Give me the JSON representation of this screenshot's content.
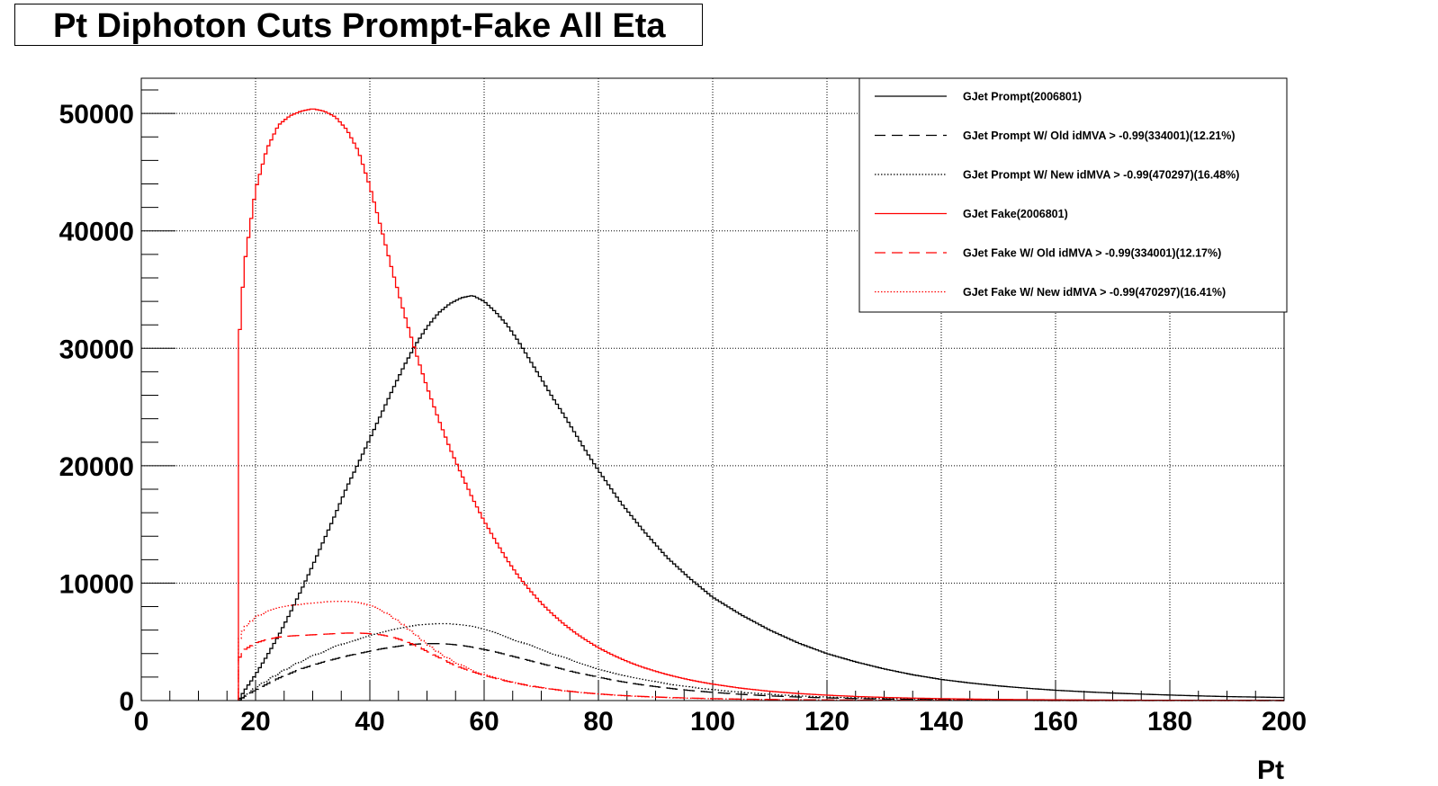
{
  "chart_data": {
    "type": "line",
    "title": "Pt Diphoton Cuts Prompt-Fake All Eta",
    "xlabel": "Pt",
    "ylabel": "",
    "xlim": [
      0,
      200
    ],
    "ylim": [
      0,
      53000
    ],
    "x_ticks": [
      "0",
      "20",
      "40",
      "60",
      "80",
      "100",
      "120",
      "140",
      "160",
      "180",
      "200"
    ],
    "y_ticks": [
      "0",
      "10000",
      "20000",
      "30000",
      "40000",
      "50000"
    ],
    "grid": true,
    "legend_position": "top-right",
    "histogram_style": "step",
    "x": [
      17,
      18,
      20,
      22,
      24,
      26,
      28,
      30,
      32,
      34,
      36,
      38,
      40,
      42,
      44,
      46,
      48,
      50,
      52,
      54,
      56,
      58,
      60,
      62,
      64,
      66,
      68,
      70,
      72,
      74,
      76,
      78,
      80,
      82,
      84,
      86,
      88,
      90,
      92,
      94,
      96,
      98,
      100,
      105,
      110,
      115,
      120,
      125,
      130,
      135,
      140,
      145,
      150,
      155,
      160,
      165,
      170,
      175,
      180,
      185,
      190,
      195,
      200
    ],
    "series": [
      {
        "name": "GJet Prompt(2006801)",
        "color": "#000000",
        "dash": "solid",
        "values": [
          0,
          800,
          2200,
          3800,
          5500,
          7400,
          9400,
          11500,
          13700,
          15900,
          18200,
          20200,
          22300,
          24400,
          26500,
          28500,
          30300,
          31800,
          33000,
          33800,
          34300,
          34500,
          34000,
          33100,
          32000,
          30600,
          29000,
          27400,
          25800,
          24300,
          22700,
          21100,
          19600,
          18200,
          16800,
          15600,
          14400,
          13300,
          12200,
          11300,
          10400,
          9600,
          8800,
          7300,
          6000,
          4900,
          4000,
          3300,
          2700,
          2200,
          1800,
          1500,
          1250,
          1050,
          880,
          750,
          640,
          550,
          470,
          400,
          340,
          300,
          260
        ]
      },
      {
        "name": "GJet Prompt W/ Old idMVA > -0.99(334001)(12.21%)",
        "color": "#000000",
        "dash": "long-dash",
        "values": [
          0,
          300,
          900,
          1400,
          1900,
          2300,
          2700,
          3000,
          3300,
          3550,
          3800,
          4000,
          4200,
          4400,
          4550,
          4700,
          4800,
          4850,
          4850,
          4800,
          4700,
          4550,
          4350,
          4150,
          3900,
          3650,
          3400,
          3150,
          2900,
          2650,
          2400,
          2200,
          2000,
          1800,
          1620,
          1460,
          1320,
          1190,
          1070,
          960,
          860,
          780,
          700,
          530,
          400,
          300,
          230,
          175,
          135,
          105,
          80,
          62,
          48,
          38,
          30,
          24,
          19,
          15,
          12,
          10,
          8,
          6,
          5
        ]
      },
      {
        "name": "GJet Prompt W/ New idMVA > -0.99(470297)(16.48%)",
        "color": "#000000",
        "dash": "dotted",
        "values": [
          0,
          350,
          1100,
          1700,
          2300,
          2850,
          3350,
          3800,
          4200,
          4600,
          4950,
          5250,
          5550,
          5800,
          6050,
          6250,
          6400,
          6500,
          6550,
          6550,
          6450,
          6300,
          6050,
          5750,
          5400,
          5050,
          4700,
          4350,
          4000,
          3650,
          3300,
          3000,
          2700,
          2450,
          2200,
          1980,
          1780,
          1600,
          1440,
          1290,
          1160,
          1040,
          930,
          700,
          530,
          400,
          300,
          230,
          175,
          135,
          105,
          80,
          62,
          48,
          38,
          30,
          24,
          19,
          15,
          12,
          10,
          8,
          6
        ]
      },
      {
        "name": "GJet Fake(2006801)",
        "color": "#ff0000",
        "dash": "solid",
        "values": [
          29800,
          37000,
          43500,
          47000,
          49000,
          49800,
          50200,
          50400,
          50200,
          49700,
          48600,
          46800,
          43800,
          40200,
          36500,
          33000,
          29700,
          26700,
          24000,
          21500,
          19300,
          17200,
          15300,
          13600,
          12000,
          10600,
          9400,
          8300,
          7350,
          6500,
          5750,
          5100,
          4500,
          4000,
          3550,
          3150,
          2800,
          2500,
          2220,
          1980,
          1760,
          1570,
          1400,
          1050,
          790,
          600,
          460,
          350,
          270,
          210,
          165,
          130,
          100,
          80,
          63,
          50,
          40,
          32,
          25,
          20,
          16,
          13,
          10
        ]
      },
      {
        "name": "GJet Fake W/ Old idMVA > -0.99(334001)(12.17%)",
        "color": "#ff0000",
        "dash": "long-dash",
        "values": [
          3500,
          4300,
          4900,
          5200,
          5400,
          5500,
          5550,
          5600,
          5650,
          5700,
          5750,
          5750,
          5700,
          5600,
          5400,
          5100,
          4700,
          4200,
          3700,
          3200,
          2800,
          2450,
          2150,
          1900,
          1650,
          1450,
          1270,
          1110,
          970,
          850,
          740,
          650,
          570,
          500,
          440,
          390,
          345,
          305,
          270,
          240,
          212,
          188,
          167,
          125,
          94,
          71,
          54,
          41,
          31,
          24,
          18,
          14,
          11,
          8,
          6,
          5,
          4,
          3,
          2,
          2,
          1,
          1,
          1
        ]
      },
      {
        "name": "GJet Fake W/ New idMVA > -0.99(470297)(16.41%)",
        "color": "#ff0000",
        "dash": "dotted",
        "values": [
          5000,
          6200,
          7100,
          7600,
          7900,
          8100,
          8200,
          8300,
          8400,
          8450,
          8450,
          8350,
          8100,
          7700,
          7100,
          6400,
          5600,
          4800,
          4100,
          3500,
          3000,
          2580,
          2220,
          1920,
          1660,
          1440,
          1250,
          1090,
          950,
          830,
          725,
          635,
          555,
          487,
          427,
          375,
          330,
          290,
          255,
          225,
          198,
          175,
          155,
          115,
          86,
          65,
          49,
          37,
          28,
          21,
          16,
          12,
          9,
          7,
          5,
          4,
          3,
          2,
          2,
          1,
          1,
          1,
          1
        ]
      }
    ]
  }
}
